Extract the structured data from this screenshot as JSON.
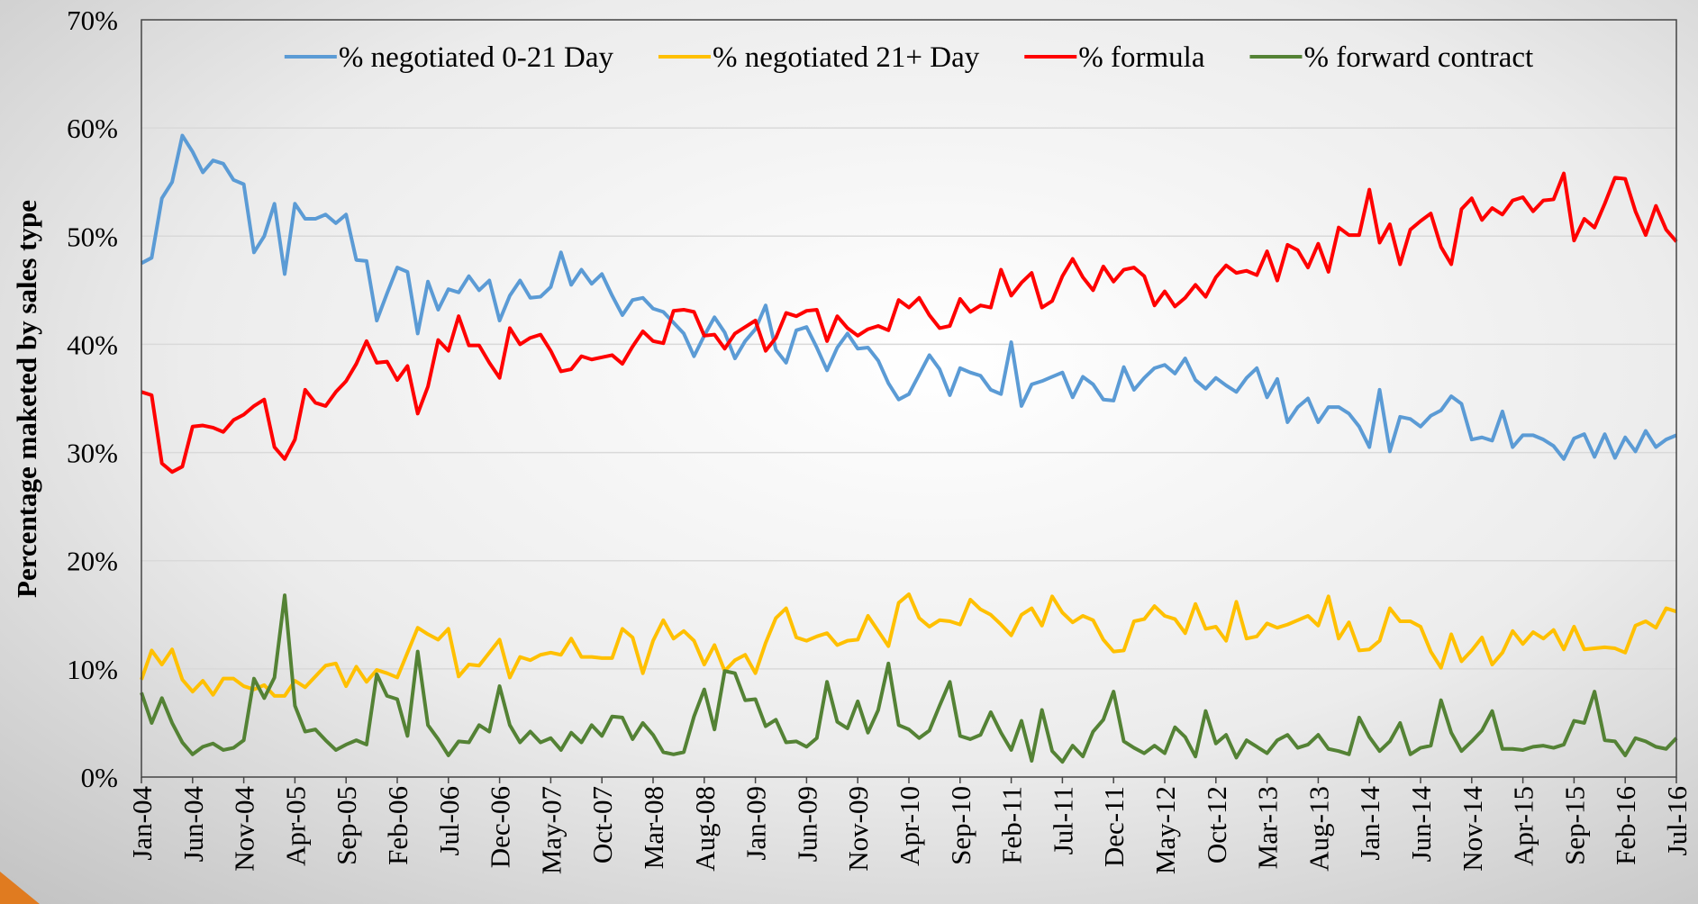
{
  "chart_data": {
    "type": "line",
    "y_label": "Percentage maketed by sales type",
    "categories": [
      "Jan-04",
      null,
      null,
      null,
      null,
      "Jun-04",
      null,
      null,
      null,
      null,
      "Nov-04",
      null,
      null,
      null,
      null,
      "Apr-05",
      null,
      null,
      null,
      null,
      "Sep-05",
      null,
      null,
      null,
      null,
      "Feb-06",
      null,
      null,
      null,
      null,
      "Jul-06",
      null,
      null,
      null,
      null,
      "Dec-06",
      null,
      null,
      null,
      null,
      "May-07",
      null,
      null,
      null,
      null,
      "Oct-07",
      null,
      null,
      null,
      null,
      "Mar-08",
      null,
      null,
      null,
      null,
      "Aug-08",
      null,
      null,
      null,
      null,
      "Jan-09",
      null,
      null,
      null,
      null,
      "Jun-09",
      null,
      null,
      null,
      null,
      "Nov-09",
      null,
      null,
      null,
      null,
      "Apr-10",
      null,
      null,
      null,
      null,
      "Sep-10",
      null,
      null,
      null,
      null,
      "Feb-11",
      null,
      null,
      null,
      null,
      "Jul-11",
      null,
      null,
      null,
      null,
      "Dec-11",
      null,
      null,
      null,
      null,
      "May-12",
      null,
      null,
      null,
      null,
      "Oct-12",
      null,
      null,
      null,
      null,
      "Mar-13",
      null,
      null,
      null,
      null,
      "Aug-13",
      null,
      null,
      null,
      null,
      "Jan-14",
      null,
      null,
      null,
      null,
      "Jun-14",
      null,
      null,
      null,
      null,
      "Nov-14",
      null,
      null,
      null,
      null,
      "Apr-15",
      null,
      null,
      null,
      null,
      "Sep-15",
      null,
      null,
      null,
      null,
      "Feb-16",
      null,
      null,
      null,
      null,
      "Jul-16"
    ],
    "series": [
      {
        "name": "% negotiated 0-21 Day",
        "color": "#5b9bd5",
        "values": [
          47.5,
          48,
          53.5,
          55,
          59.3,
          57.8,
          55.9,
          57,
          56.7,
          55.2,
          54.8,
          48.5,
          50,
          53,
          46.5,
          53,
          51.6,
          51.6,
          52,
          51.2,
          52,
          47.8,
          47.7,
          42.2,
          44.7,
          47.1,
          46.7,
          41,
          45.8,
          43.2,
          45.1,
          44.8,
          46.3,
          45,
          45.9,
          42.2,
          44.5,
          45.9,
          44.3,
          44.4,
          45.3,
          48.5,
          45.5,
          46.9,
          45.6,
          46.5,
          44.5,
          42.7,
          44.1,
          44.3,
          43.3,
          43,
          42,
          41,
          38.9,
          40.8,
          42.5,
          41.1,
          38.7,
          40.3,
          41.4,
          43.6,
          39.5,
          38.3,
          41.3,
          41.6,
          39.7,
          37.6,
          39.7,
          41,
          39.6,
          39.7,
          38.5,
          36.4,
          34.9,
          35.4,
          37.2,
          39,
          37.7,
          35.3,
          37.8,
          37.4,
          37.1,
          35.8,
          35.4,
          40.2,
          34.3,
          36.3,
          36.6,
          37,
          37.4,
          35.1,
          37,
          36.3,
          34.9,
          34.8,
          37.9,
          35.8,
          36.9,
          37.8,
          38.1,
          37.3,
          38.7,
          36.7,
          35.9,
          36.9,
          36.2,
          35.6,
          36.9,
          37.8,
          35.1,
          36.8,
          32.8,
          34.2,
          35,
          32.8,
          34.2,
          34.2,
          33.6,
          32.4,
          30.5,
          35.8,
          30.1,
          33.3,
          33.1,
          32.4,
          33.4,
          33.9,
          35.2,
          34.5,
          31.2,
          31.4,
          31.1,
          33.8,
          30.5,
          31.6,
          31.6,
          31.2,
          30.6,
          29.4,
          31.3,
          31.7,
          29.6,
          31.7,
          29.5,
          31.4,
          30.1,
          32,
          30.5,
          31.2,
          31.6
        ]
      },
      {
        "name": "% negotiated 21+ Day",
        "color": "#ffc000",
        "values": [
          9,
          11.7,
          10.4,
          11.8,
          9,
          7.9,
          8.9,
          7.6,
          9.1,
          9.1,
          8.4,
          8.1,
          8.5,
          7.5,
          7.5,
          8.9,
          8.3,
          9.3,
          10.3,
          10.5,
          8.4,
          10.2,
          8.8,
          9.9,
          9.6,
          9.2,
          11.5,
          13.8,
          13.2,
          12.7,
          13.7,
          9.3,
          10.4,
          10.3,
          11.5,
          12.7,
          9.2,
          11.1,
          10.8,
          11.3,
          11.5,
          11.3,
          12.8,
          11.1,
          11.1,
          11,
          11,
          13.7,
          12.9,
          9.6,
          12.6,
          14.5,
          12.8,
          13.5,
          12.6,
          10.4,
          12.2,
          9.8,
          10.8,
          11.3,
          9.6,
          12.4,
          14.7,
          15.6,
          12.9,
          12.6,
          13,
          13.3,
          12.2,
          12.6,
          12.7,
          14.9,
          13.5,
          12.1,
          16.1,
          16.9,
          14.7,
          13.9,
          14.5,
          14.4,
          14.1,
          16.4,
          15.5,
          15,
          14.1,
          13.1,
          15,
          15.6,
          14,
          16.7,
          15.2,
          14.3,
          14.9,
          14.5,
          12.7,
          11.6,
          11.7,
          14.4,
          14.6,
          15.8,
          14.9,
          14.6,
          13.3,
          16,
          13.7,
          13.9,
          12.6,
          16.2,
          12.8,
          13,
          14.2,
          13.8,
          14.1,
          14.5,
          14.9,
          14,
          16.7,
          12.8,
          14.3,
          11.7,
          11.8,
          12.6,
          15.6,
          14.4,
          14.4,
          13.9,
          11.6,
          10.1,
          13.2,
          10.7,
          11.7,
          12.9,
          10.4,
          11.5,
          13.5,
          12.3,
          13.4,
          12.8,
          13.6,
          11.8,
          13.9,
          11.8,
          11.9,
          12,
          11.9,
          11.5,
          14,
          14.4,
          13.8,
          15.6,
          15.3
        ]
      },
      {
        "name": "% formula",
        "color": "#ff0000",
        "values": [
          35.6,
          35.3,
          29,
          28.2,
          28.7,
          32.4,
          32.5,
          32.3,
          31.9,
          33,
          33.5,
          34.3,
          34.9,
          30.5,
          29.4,
          31.2,
          35.8,
          34.6,
          34.3,
          35.6,
          36.6,
          38.2,
          40.3,
          38.3,
          38.4,
          36.7,
          38,
          33.6,
          36.1,
          40.4,
          39.4,
          42.6,
          39.9,
          39.9,
          38.3,
          36.9,
          41.5,
          40,
          40.6,
          40.9,
          39.4,
          37.5,
          37.7,
          38.9,
          38.6,
          38.8,
          39,
          38.2,
          39.8,
          41.2,
          40.3,
          40.1,
          43.1,
          43.2,
          43,
          40.8,
          40.9,
          39.6,
          41,
          41.6,
          42.2,
          39.4,
          40.6,
          42.9,
          42.6,
          43.1,
          43.2,
          40.3,
          42.6,
          41.5,
          40.8,
          41.4,
          41.7,
          41.3,
          44.1,
          43.4,
          44.3,
          42.7,
          41.5,
          41.7,
          44.2,
          43,
          43.6,
          43.4,
          46.9,
          44.5,
          45.7,
          46.6,
          43.4,
          44,
          46.3,
          47.9,
          46.2,
          45,
          47.2,
          45.8,
          46.9,
          47.1,
          46.3,
          43.6,
          44.9,
          43.5,
          44.3,
          45.5,
          44.4,
          46.2,
          47.3,
          46.6,
          46.8,
          46.4,
          48.6,
          45.9,
          49.2,
          48.7,
          47.1,
          49.3,
          46.7,
          50.8,
          50.1,
          50.1,
          54.3,
          49.4,
          51.1,
          47.4,
          50.6,
          51.4,
          52.1,
          49,
          47.4,
          52.5,
          53.5,
          51.5,
          52.6,
          52,
          53.3,
          53.6,
          52.3,
          53.3,
          53.4,
          55.8,
          49.6,
          51.6,
          50.8,
          53,
          55.4,
          55.3,
          52.3,
          50.1,
          52.8,
          50.6,
          49.5
        ]
      },
      {
        "name": "% forward contract",
        "color": "#548235",
        "values": [
          7.8,
          5,
          7.3,
          5,
          3.2,
          2.1,
          2.8,
          3.1,
          2.5,
          2.7,
          3.4,
          9.1,
          7.3,
          9.2,
          16.8,
          6.6,
          4.2,
          4.4,
          3.4,
          2.5,
          3,
          3.4,
          3,
          9.5,
          7.5,
          7.2,
          3.8,
          11.6,
          4.8,
          3.5,
          2,
          3.3,
          3.2,
          4.8,
          4.2,
          8.4,
          4.8,
          3.2,
          4.2,
          3.2,
          3.6,
          2.5,
          4.1,
          3.2,
          4.8,
          3.8,
          5.6,
          5.5,
          3.5,
          5,
          3.9,
          2.3,
          2.1,
          2.3,
          5.6,
          8.1,
          4.4,
          9.8,
          9.6,
          7.1,
          7.2,
          4.7,
          5.3,
          3.2,
          3.3,
          2.8,
          3.6,
          8.8,
          5.1,
          4.5,
          7,
          4.1,
          6.2,
          10.5,
          4.8,
          4.4,
          3.6,
          4.3,
          6.6,
          8.8,
          3.8,
          3.5,
          3.9,
          6,
          4.1,
          2.5,
          5.2,
          1.5,
          6.2,
          2.4,
          1.4,
          2.9,
          1.9,
          4.2,
          5.3,
          7.9,
          3.3,
          2.7,
          2.2,
          2.9,
          2.2,
          4.6,
          3.7,
          1.9,
          6.1,
          3.1,
          3.9,
          1.8,
          3.4,
          2.8,
          2.2,
          3.4,
          3.9,
          2.7,
          3,
          3.9,
          2.6,
          2.4,
          2.1,
          5.5,
          3.7,
          2.4,
          3.3,
          5,
          2.1,
          2.7,
          2.9,
          7.1,
          4.1,
          2.4,
          3.3,
          4.3,
          6.1,
          2.6,
          2.6,
          2.5,
          2.8,
          2.9,
          2.7,
          3,
          5.2,
          5,
          7.9,
          3.4,
          3.3,
          2,
          3.6,
          3.3,
          2.8,
          2.6,
          3.6
        ]
      }
    ],
    "ylim": [
      0,
      70
    ],
    "yticks": [
      {
        "value": 0,
        "label": "0%"
      },
      {
        "value": 10,
        "label": "10%"
      },
      {
        "value": 20,
        "label": "20%"
      },
      {
        "value": 30,
        "label": "30%"
      },
      {
        "value": 40,
        "label": "40%"
      },
      {
        "value": 50,
        "label": "50%"
      },
      {
        "value": 60,
        "label": "60%"
      },
      {
        "value": 70,
        "label": "70%"
      }
    ],
    "grid": true,
    "legend": "top"
  }
}
